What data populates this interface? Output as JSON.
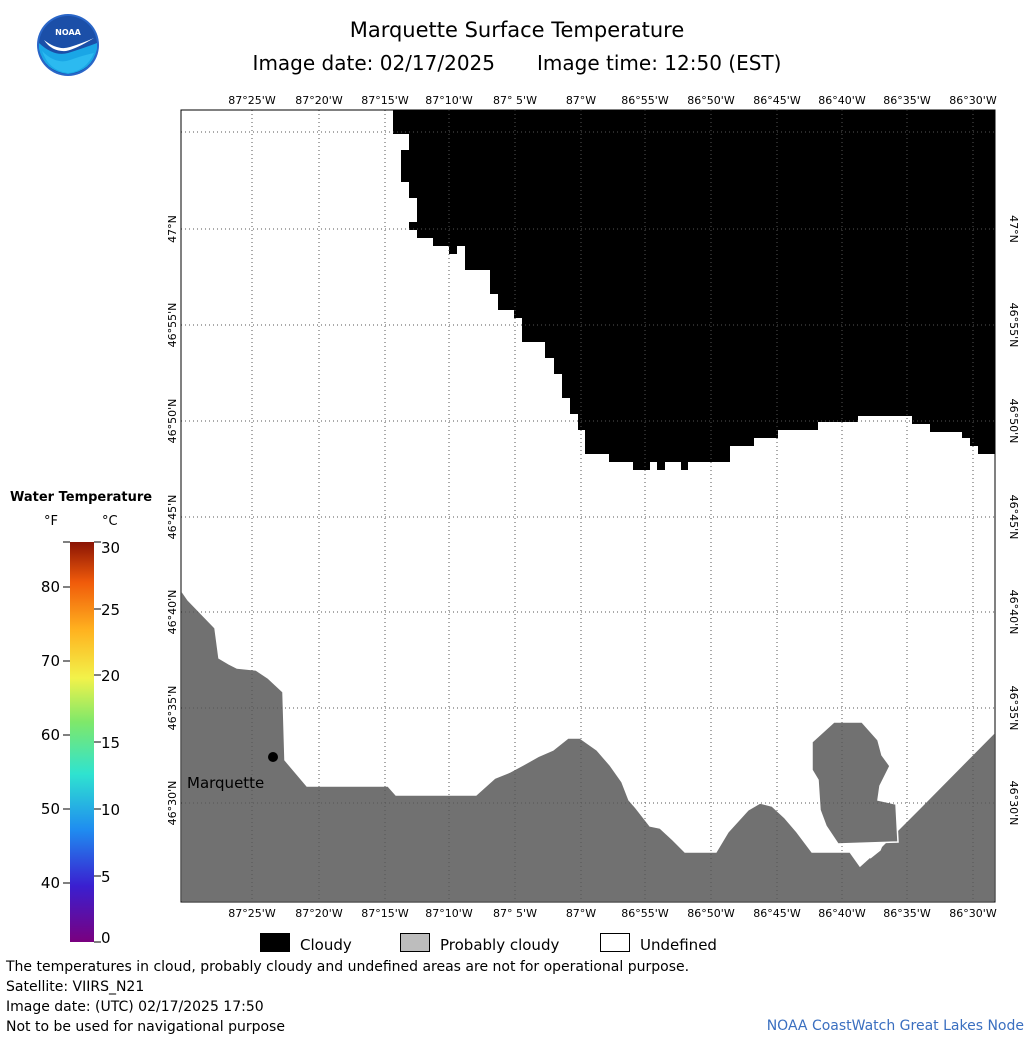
{
  "header": {
    "title": "Marquette Surface Temperature",
    "image_date_label": "Image date: 02/17/2025",
    "image_time_label": "Image time: 12:50 (EST)"
  },
  "map": {
    "longitude_labels": [
      "87°25'W",
      "87°20'W",
      "87°15'W",
      "87°10'W",
      "87° 5'W",
      "87°W",
      "86°55'W",
      "86°50'W",
      "86°45'W",
      "86°40'W",
      "86°35'W",
      "86°30'W"
    ],
    "latitude_labels": [
      "47°N",
      "46°55'N",
      "46°50'N",
      "46°45'N",
      "46°40'N",
      "46°35'N",
      "46°30'N"
    ],
    "place_label": "Marquette",
    "colors": {
      "cloudy": "#000000",
      "probably_cloudy": "#717171",
      "undefined": "#ffffff"
    }
  },
  "color_scale": {
    "title": "Water Temperature",
    "unit_f": "°F",
    "unit_c": "°C",
    "f_labels": [
      "80",
      "70",
      "60",
      "50",
      "40"
    ],
    "c_labels": [
      "30",
      "25",
      "20",
      "15",
      "10",
      "5",
      "0"
    ]
  },
  "legend": {
    "cloudy": "Cloudy",
    "probably_cloudy": "Probably cloudy",
    "undefined": "Undefined"
  },
  "footer": {
    "note": "The temperatures in cloud, probably cloudy and undefined areas are not for operational purpose.",
    "satellite": "Satellite: VIIRS_N21",
    "utc_date": "Image date: (UTC) 02/17/2025  17:50",
    "nav_warning": "Not to be used for navigational purpose",
    "credit": "NOAA CoastWatch Great Lakes Node"
  }
}
